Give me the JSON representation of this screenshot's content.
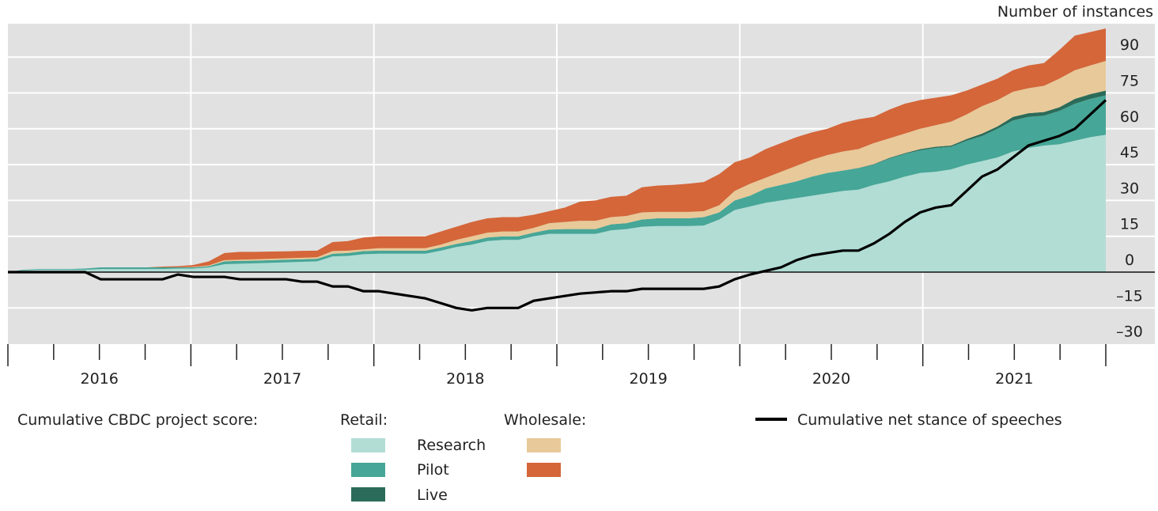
{
  "chart_data": {
    "type": "area",
    "y_axis_title": "Number of instances",
    "ylim": [
      -30,
      104
    ],
    "yticks": [
      90,
      75,
      60,
      45,
      30,
      15,
      0,
      -15,
      -30
    ],
    "ytick_labels": [
      "90",
      "75",
      "60",
      "45",
      "30",
      "15",
      "0",
      "–15",
      "–30"
    ],
    "x_range": [
      "2016-01",
      "2021-12"
    ],
    "x_frequency": "monthly",
    "year_labels": [
      "2016",
      "2017",
      "2018",
      "2019",
      "2020",
      "2021"
    ],
    "grid": true,
    "legend_placement": "bottom",
    "legend": {
      "title": "Cumulative CBDC project score:",
      "retail_label": "Retail:",
      "wholesale_label": "Wholesale:",
      "line_label": "Cumulative net stance of speeches"
    },
    "stacked_series": [
      {
        "group": "Retail",
        "name": "Research",
        "color": "#b1ddd5",
        "values": [
          0,
          0.7,
          1,
          1,
          1,
          1,
          1.3,
          1.3,
          1.3,
          1.3,
          1.3,
          1.5,
          1.5,
          2,
          3.3,
          3.5,
          3.7,
          3.9,
          4.1,
          4.3,
          4.5,
          6.6,
          6.8,
          7.5,
          7.7,
          7.7,
          7.7,
          7.7,
          9,
          10.5,
          11.5,
          13,
          13.5,
          13.5,
          15,
          16,
          16,
          16,
          16,
          17.5,
          18,
          19,
          19.3,
          19.3,
          19.3,
          19.5,
          22,
          26,
          27.5,
          29,
          30,
          31,
          32,
          33,
          34,
          34.5,
          36.5,
          38,
          40,
          41.5,
          42,
          43,
          45,
          46.5,
          48,
          50.5,
          52,
          53,
          53.5,
          55,
          56.5,
          57.5
        ]
      },
      {
        "group": "Retail",
        "name": "Pilot",
        "color": "#46a697",
        "values": [
          0,
          0.3,
          0.3,
          0.3,
          0.3,
          0.5,
          0.7,
          0.7,
          0.7,
          0.7,
          0.7,
          0.5,
          0.5,
          0.5,
          1.2,
          1.2,
          1.1,
          1.1,
          1.1,
          1.1,
          1.1,
          1.1,
          1.2,
          1.3,
          1.3,
          1.3,
          1.3,
          1.3,
          1.3,
          1.3,
          1.5,
          1.5,
          1.5,
          1.5,
          1.5,
          1.8,
          2,
          2,
          2,
          2.5,
          2.5,
          3,
          3.2,
          3.2,
          3.2,
          3.5,
          3,
          4,
          4.5,
          6,
          6.5,
          7,
          8,
          8.5,
          8.5,
          9,
          8.5,
          9.5,
          9.5,
          9.5,
          10,
          9.5,
          10,
          10.5,
          12,
          13,
          13,
          12.5,
          14,
          15.5,
          16,
          16.5
        ]
      },
      {
        "group": "Retail",
        "name": "Live",
        "color": "#2b6b59",
        "values": [
          0,
          0,
          0,
          0,
          0,
          0,
          0,
          0,
          0,
          0,
          0,
          0,
          0,
          0,
          0,
          0,
          0,
          0,
          0,
          0,
          0,
          0,
          0,
          0,
          0,
          0,
          0,
          0,
          0,
          0,
          0,
          0,
          0,
          0,
          0,
          0,
          0,
          0,
          0,
          0,
          0,
          0,
          0,
          0,
          0,
          0,
          0,
          0,
          0,
          0,
          0,
          0,
          0,
          0,
          0,
          0.1,
          0.2,
          0.3,
          0.3,
          0.5,
          0.5,
          0.5,
          0.7,
          1,
          1,
          1.5,
          1.5,
          1.5,
          1.5,
          2,
          2,
          2
        ]
      },
      {
        "group": "Wholesale",
        "name": "Research",
        "color": "#e8c999",
        "values": [
          0,
          0,
          0,
          0,
          0,
          0,
          0,
          0,
          0,
          0,
          0,
          0,
          0.2,
          0.3,
          0.5,
          0.5,
          0.6,
          0.6,
          0.6,
          0.6,
          0.6,
          1.1,
          1,
          0.7,
          1,
          1,
          1,
          1,
          1.2,
          1.7,
          2,
          2,
          2,
          2,
          2,
          2.7,
          3,
          3.5,
          3.5,
          3,
          3,
          3,
          2.7,
          2.7,
          2.7,
          2.5,
          3,
          4,
          5,
          4.5,
          5.5,
          6.5,
          7,
          7.5,
          8,
          7.9,
          8.8,
          8.2,
          8.2,
          8.5,
          9,
          10,
          10.3,
          11.5,
          11,
          10.5,
          10.5,
          11,
          12,
          12,
          12,
          12.4
        ]
      },
      {
        "group": "Wholesale",
        "name": "Pilot",
        "color": "#d4663a",
        "values": [
          0,
          0,
          0,
          0,
          0,
          0,
          0,
          0,
          0,
          0,
          0.3,
          0.5,
          0.8,
          1.7,
          3,
          3.3,
          3.1,
          3,
          2.9,
          2.9,
          2.8,
          3.8,
          4,
          5,
          5,
          5,
          5,
          5,
          5.5,
          5.5,
          6,
          6,
          6,
          6,
          5.5,
          5,
          6,
          8,
          8.5,
          8.5,
          8.5,
          10.5,
          11,
          11.3,
          11.8,
          12.2,
          13,
          12,
          11,
          12,
          12,
          12,
          11.5,
          11,
          12,
          12.5,
          11,
          12,
          12.5,
          12,
          11.5,
          11,
          10,
          9,
          9,
          9,
          9.5,
          9.5,
          12,
          14.5,
          14,
          13.6
        ]
      }
    ],
    "line_series": {
      "name": "Cumulative net stance of speeches",
      "color": "#000000",
      "values": [
        0,
        0,
        0,
        0,
        0,
        0,
        -3,
        -3,
        -3,
        -3,
        -3,
        -1,
        -2,
        -2,
        -2,
        -3,
        -3,
        -3,
        -3,
        -4,
        -4,
        -6,
        -6,
        -8,
        -8,
        -9,
        -10,
        -11,
        -13,
        -15,
        -16,
        -15,
        -15,
        -15,
        -12,
        -11,
        -10,
        -9,
        -8.5,
        -8,
        -8,
        -7,
        -7,
        -7,
        -7,
        -7,
        -6,
        -3,
        -1,
        0.5,
        2,
        5,
        7,
        8,
        9,
        9,
        12,
        16,
        21,
        25,
        27,
        28,
        34,
        40,
        43,
        48,
        53,
        55,
        57,
        60,
        66,
        72
      ]
    },
    "colors": {
      "plot_background": "#e1e1e1",
      "gridline": "#ffffff",
      "zero_line": "#111111"
    }
  }
}
